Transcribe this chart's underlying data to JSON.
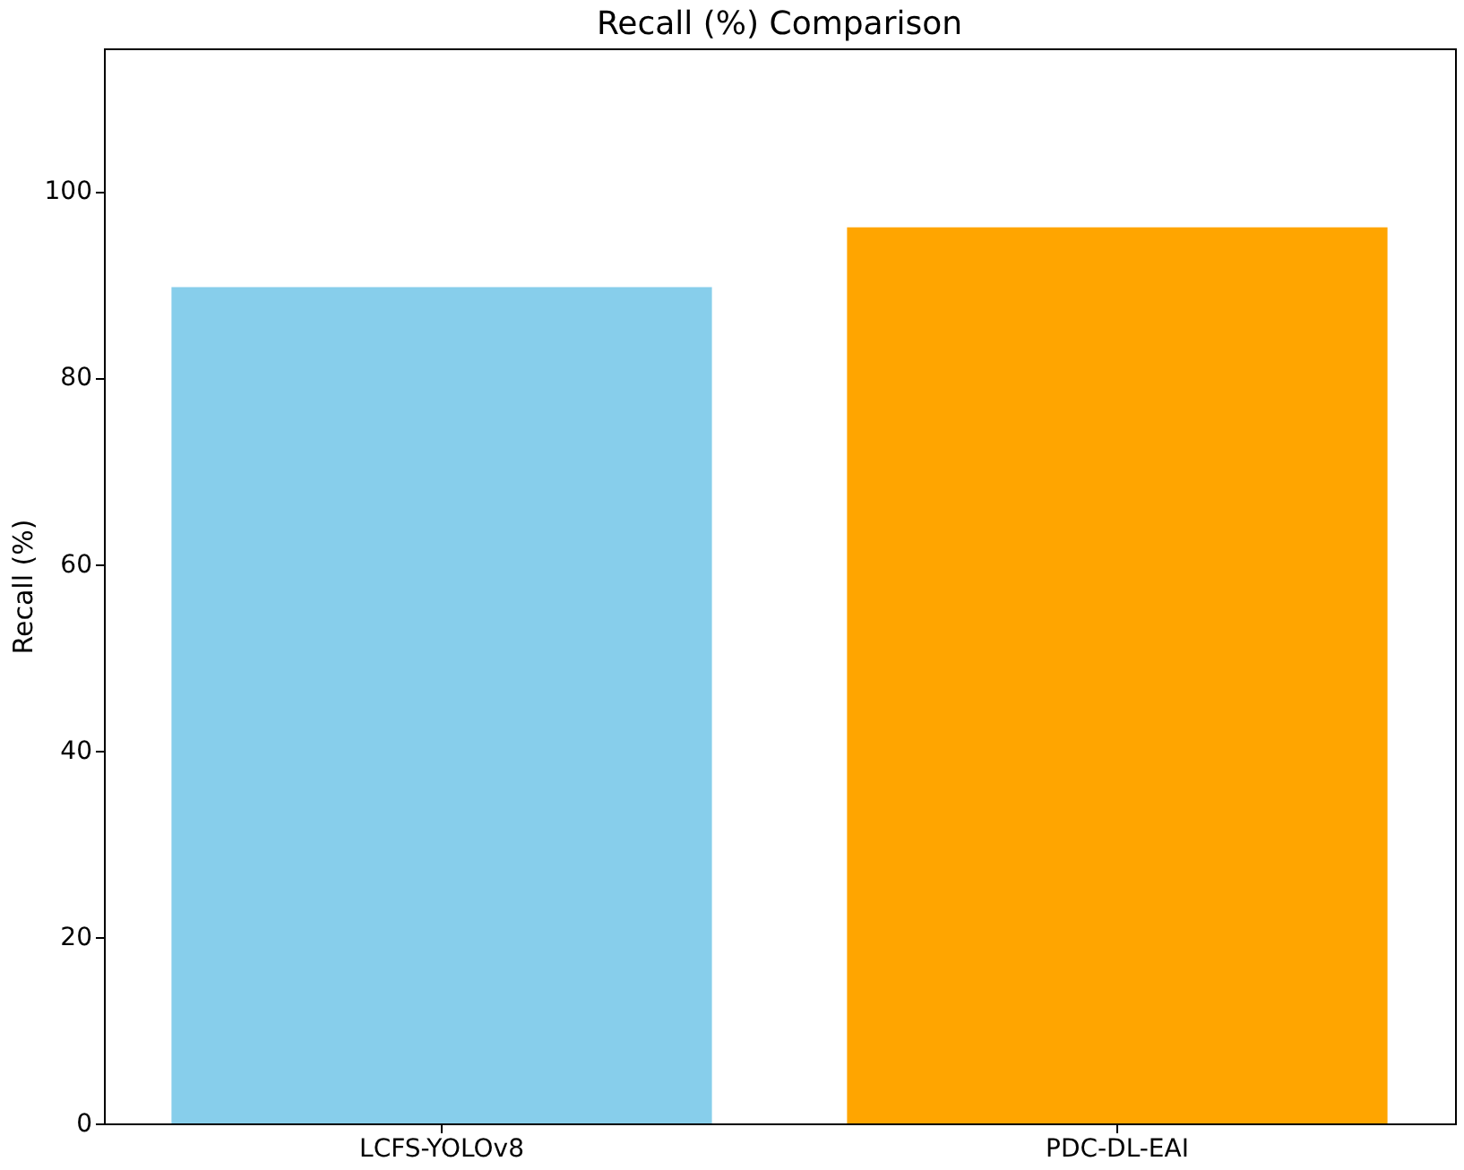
{
  "chart_data": {
    "type": "bar",
    "title": "Recall (%) Comparison",
    "ylabel": "Recall (%)",
    "categories": [
      "LCFS-YOLOv8",
      "PDC-DL-EAI"
    ],
    "values": [
      89.7,
      96.1
    ],
    "colors": [
      "#87ceeb",
      "#ffa500"
    ],
    "ylim": [
      0,
      115.3
    ],
    "yticks": [
      0,
      20,
      40,
      60,
      80,
      100
    ],
    "grid": false
  }
}
